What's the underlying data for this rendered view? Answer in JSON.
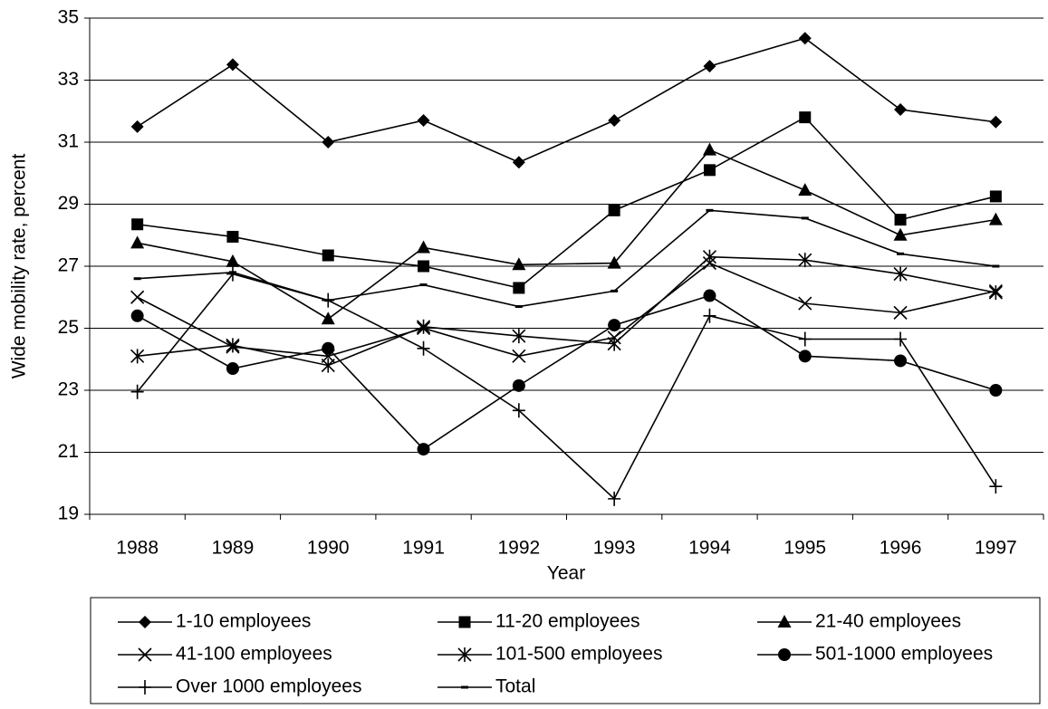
{
  "chart_data": {
    "type": "line",
    "xlabel": "Year",
    "ylabel": "Wide mobility rate, percent",
    "categories": [
      "1988",
      "1989",
      "1990",
      "1991",
      "1992",
      "1993",
      "1994",
      "1995",
      "1996",
      "1997"
    ],
    "ylim": [
      19,
      35
    ],
    "yticks": [
      19,
      21,
      23,
      25,
      27,
      29,
      31,
      33,
      35
    ],
    "grid": true,
    "series": [
      {
        "name": "1-10 employees",
        "color": "#000000",
        "marker": "diamond",
        "values": [
          31.5,
          33.5,
          31.0,
          31.7,
          30.35,
          31.7,
          33.45,
          34.35,
          32.05,
          31.65
        ]
      },
      {
        "name": "11-20 employees",
        "color": "#000000",
        "marker": "square",
        "values": [
          28.35,
          27.95,
          27.35,
          27.0,
          26.3,
          28.8,
          30.1,
          31.8,
          28.5,
          29.25
        ]
      },
      {
        "name": "21-40 employees",
        "color": "#000000",
        "marker": "triangle",
        "values": [
          27.75,
          27.15,
          25.3,
          27.6,
          27.05,
          27.1,
          30.75,
          29.45,
          28.0,
          28.5
        ]
      },
      {
        "name": "41-100 employees",
        "color": "#000000",
        "marker": "x",
        "values": [
          26.0,
          24.4,
          24.1,
          25.0,
          24.1,
          24.7,
          27.1,
          25.8,
          25.5,
          26.2
        ]
      },
      {
        "name": "101-500 employees",
        "color": "#000000",
        "marker": "asterisk",
        "values": [
          24.1,
          24.45,
          23.8,
          25.05,
          24.75,
          24.5,
          27.3,
          27.2,
          26.75,
          26.15
        ]
      },
      {
        "name": "501-1000 employees",
        "color": "#000000",
        "marker": "circle",
        "values": [
          25.4,
          23.7,
          24.35,
          21.1,
          23.15,
          25.1,
          26.05,
          24.1,
          23.95,
          23.0
        ]
      },
      {
        "name": "Over 1000 employees",
        "color": "#000000",
        "marker": "plus",
        "values": [
          22.95,
          26.75,
          25.9,
          24.35,
          22.35,
          19.5,
          25.4,
          24.65,
          24.65,
          19.9
        ]
      },
      {
        "name": "Total",
        "color": "#000000",
        "marker": "dash",
        "values": [
          26.6,
          26.8,
          25.9,
          26.4,
          25.7,
          26.2,
          28.8,
          28.55,
          27.4,
          27.0
        ]
      }
    ]
  }
}
